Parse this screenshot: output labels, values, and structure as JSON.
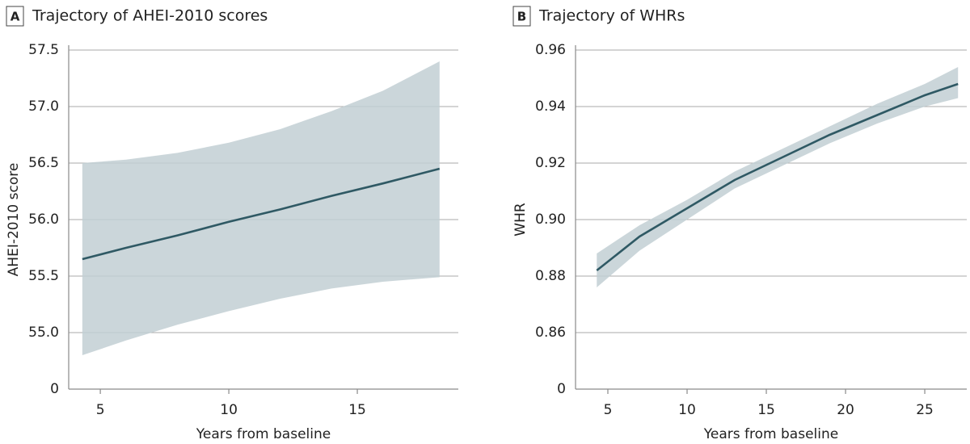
{
  "chart_data": [
    {
      "type": "line",
      "panel_label": "A",
      "title": "Trajectory of AHEI-2010 scores",
      "x_label": "Years from baseline",
      "y_label": "AHEI-2010 score",
      "x": [
        4.3,
        6,
        8,
        10,
        12,
        14,
        16,
        18.2
      ],
      "series": [
        {
          "color": "#2f5964",
          "band_color": "#c2cfd3",
          "values": [
            55.65,
            55.75,
            55.86,
            55.98,
            56.09,
            56.21,
            56.32,
            56.45
          ],
          "upper": [
            56.5,
            56.53,
            56.59,
            56.68,
            56.8,
            56.96,
            57.14,
            57.4
          ],
          "lower": [
            54.8,
            54.93,
            55.07,
            55.19,
            55.3,
            55.39,
            55.45,
            55.49
          ]
        }
      ],
      "xlim": [
        3.77,
        18.93
      ],
      "xticks": [
        5,
        10,
        15
      ],
      "ylim": [
        54.5,
        57.5
      ],
      "yticks": [
        {
          "value": 55.0,
          "label": "55.0"
        },
        55.5,
        {
          "value": 56.0,
          "label": "56.0"
        },
        56.5,
        {
          "value": 57.0,
          "label": "57.0"
        },
        57.5
      ],
      "axis_origin_label": "0",
      "grid": true
    },
    {
      "type": "line",
      "panel_label": "B",
      "title": "Trajectory of WHRs",
      "x_label": "Years from baseline",
      "y_label": "WHR",
      "x": [
        4.3,
        7,
        10,
        13,
        16,
        19,
        22,
        25,
        27.1
      ],
      "series": [
        {
          "color": "#2f5964",
          "band_color": "#c2cfd3",
          "values": [
            0.882,
            0.894,
            0.904,
            0.914,
            0.922,
            0.93,
            0.937,
            0.944,
            0.948
          ],
          "upper": [
            0.888,
            0.898,
            0.907,
            0.917,
            0.925,
            0.933,
            0.941,
            0.948,
            0.954
          ],
          "lower": [
            0.876,
            0.889,
            0.9,
            0.911,
            0.919,
            0.927,
            0.934,
            0.94,
            0.943
          ]
        }
      ],
      "xlim": [
        2.96,
        27.65
      ],
      "xticks": [
        5,
        10,
        15,
        20,
        25
      ],
      "ylim": [
        0.84,
        0.96
      ],
      "yticks": [
        0.86,
        0.88,
        {
          "value": 0.9,
          "label": "0.90"
        },
        0.92,
        0.94,
        0.96
      ],
      "axis_origin_label": "0",
      "grid": true
    }
  ]
}
